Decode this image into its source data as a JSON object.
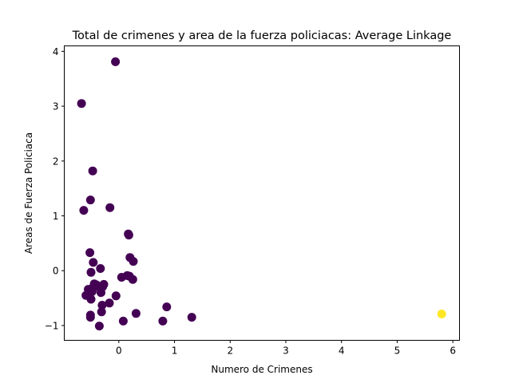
{
  "chart_data": {
    "type": "scatter",
    "title": "Total de crimenes y area de la fuerza policiacas: Average Linkage",
    "xlabel": "Numero de Crimenes",
    "ylabel": "Areas de Fuerza Policiaca",
    "xlim": [
      -0.98,
      6.12
    ],
    "ylim": [
      -1.27,
      4.1
    ],
    "xticks": [
      0,
      1,
      2,
      3,
      4,
      5,
      6
    ],
    "yticks": [
      -1,
      0,
      1,
      2,
      3,
      4
    ],
    "grid": false,
    "legend": "none",
    "colors": {
      "cluster_0": "#440154",
      "cluster_1": "#fde725"
    },
    "points": [
      {
        "x": -0.06,
        "y": 3.81,
        "cluster": 0
      },
      {
        "x": -0.67,
        "y": 3.05,
        "cluster": 0
      },
      {
        "x": -0.47,
        "y": 1.82,
        "cluster": 0
      },
      {
        "x": -0.51,
        "y": 1.29,
        "cluster": 0
      },
      {
        "x": -0.16,
        "y": 1.15,
        "cluster": 0
      },
      {
        "x": -0.63,
        "y": 1.1,
        "cluster": 0
      },
      {
        "x": 0.17,
        "y": 0.67,
        "cluster": 0
      },
      {
        "x": 0.18,
        "y": 0.65,
        "cluster": 0
      },
      {
        "x": -0.52,
        "y": 0.33,
        "cluster": 0
      },
      {
        "x": 0.2,
        "y": 0.24,
        "cluster": 0
      },
      {
        "x": 0.26,
        "y": 0.17,
        "cluster": 0
      },
      {
        "x": -0.46,
        "y": 0.15,
        "cluster": 0
      },
      {
        "x": -0.33,
        "y": 0.04,
        "cluster": 0
      },
      {
        "x": -0.5,
        "y": -0.03,
        "cluster": 0
      },
      {
        "x": 0.05,
        "y": -0.12,
        "cluster": 0
      },
      {
        "x": 0.15,
        "y": -0.09,
        "cluster": 0
      },
      {
        "x": 0.19,
        "y": -0.1,
        "cluster": 0
      },
      {
        "x": 0.25,
        "y": -0.16,
        "cluster": 0
      },
      {
        "x": -0.44,
        "y": -0.24,
        "cluster": 0
      },
      {
        "x": -0.4,
        "y": -0.26,
        "cluster": 0
      },
      {
        "x": -0.27,
        "y": -0.25,
        "cluster": 0
      },
      {
        "x": -0.46,
        "y": -0.3,
        "cluster": 0
      },
      {
        "x": -0.35,
        "y": -0.3,
        "cluster": 0
      },
      {
        "x": -0.29,
        "y": -0.29,
        "cluster": 0
      },
      {
        "x": -0.55,
        "y": -0.34,
        "cluster": 0
      },
      {
        "x": -0.48,
        "y": -0.38,
        "cluster": 0
      },
      {
        "x": -0.32,
        "y": -0.4,
        "cluster": 0
      },
      {
        "x": -0.59,
        "y": -0.45,
        "cluster": 0
      },
      {
        "x": -0.54,
        "y": -0.46,
        "cluster": 0
      },
      {
        "x": -0.05,
        "y": -0.46,
        "cluster": 0
      },
      {
        "x": -0.5,
        "y": -0.52,
        "cluster": 0
      },
      {
        "x": -0.17,
        "y": -0.59,
        "cluster": 0
      },
      {
        "x": -0.3,
        "y": -0.63,
        "cluster": 0
      },
      {
        "x": 0.86,
        "y": -0.66,
        "cluster": 0
      },
      {
        "x": -0.31,
        "y": -0.75,
        "cluster": 0
      },
      {
        "x": 0.31,
        "y": -0.78,
        "cluster": 0
      },
      {
        "x": -0.51,
        "y": -0.81,
        "cluster": 0
      },
      {
        "x": -0.51,
        "y": -0.85,
        "cluster": 0
      },
      {
        "x": 1.31,
        "y": -0.85,
        "cluster": 0
      },
      {
        "x": 0.08,
        "y": -0.92,
        "cluster": 0
      },
      {
        "x": 0.79,
        "y": -0.92,
        "cluster": 0
      },
      {
        "x": -0.35,
        "y": -1.01,
        "cluster": 0
      },
      {
        "x": 5.8,
        "y": -0.79,
        "cluster": 1
      }
    ]
  }
}
